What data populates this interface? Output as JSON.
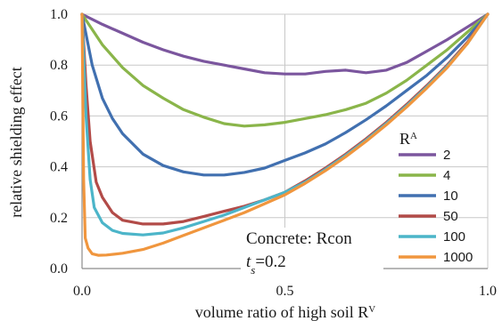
{
  "chart_data": {
    "type": "line",
    "title": "",
    "xlabel": "volume ratio of high soil R",
    "xlabel_sup": "V",
    "ylabel": "relative shielding effect",
    "xlim": [
      0,
      1
    ],
    "ylim": [
      0,
      1
    ],
    "x_ticks": [
      "0.0",
      "0.5",
      "1.0"
    ],
    "y_ticks": [
      "0.0",
      "0.2",
      "0.4",
      "0.6",
      "0.8",
      "1.0"
    ],
    "grid": true,
    "legend_title": "R",
    "legend_title_sup": "A",
    "legend_position": "right",
    "annotation_line1": "Concrete: Rcon",
    "annotation_line2_t": "t",
    "annotation_line2_sub": "s",
    "annotation_line2_rest": "=0.2",
    "series": [
      {
        "name": "2",
        "color": "#7b569e",
        "x": [
          0,
          0.05,
          0.1,
          0.15,
          0.2,
          0.25,
          0.3,
          0.35,
          0.4,
          0.45,
          0.5,
          0.55,
          0.6,
          0.65,
          0.7,
          0.75,
          0.8,
          0.85,
          0.9,
          0.95,
          1.0
        ],
        "y": [
          1.0,
          0.96,
          0.925,
          0.89,
          0.86,
          0.835,
          0.815,
          0.8,
          0.785,
          0.77,
          0.765,
          0.765,
          0.775,
          0.78,
          0.77,
          0.78,
          0.81,
          0.855,
          0.9,
          0.95,
          1.0
        ]
      },
      {
        "name": "4",
        "color": "#8ab54a",
        "x": [
          0,
          0.05,
          0.1,
          0.15,
          0.2,
          0.25,
          0.3,
          0.35,
          0.4,
          0.45,
          0.5,
          0.55,
          0.6,
          0.65,
          0.7,
          0.75,
          0.8,
          0.85,
          0.9,
          0.95,
          1.0
        ],
        "y": [
          1.0,
          0.88,
          0.79,
          0.72,
          0.67,
          0.625,
          0.595,
          0.57,
          0.56,
          0.565,
          0.575,
          0.59,
          0.605,
          0.625,
          0.65,
          0.69,
          0.74,
          0.8,
          0.86,
          0.93,
          1.0
        ]
      },
      {
        "name": "10",
        "color": "#4170b0",
        "x": [
          0,
          0.025,
          0.05,
          0.075,
          0.1,
          0.15,
          0.2,
          0.25,
          0.3,
          0.35,
          0.4,
          0.45,
          0.5,
          0.55,
          0.6,
          0.65,
          0.7,
          0.75,
          0.8,
          0.85,
          0.9,
          0.95,
          1.0
        ],
        "y": [
          1.0,
          0.8,
          0.67,
          0.59,
          0.53,
          0.45,
          0.405,
          0.38,
          0.368,
          0.368,
          0.378,
          0.395,
          0.425,
          0.455,
          0.49,
          0.535,
          0.585,
          0.64,
          0.7,
          0.76,
          0.83,
          0.91,
          1.0
        ]
      },
      {
        "name": "50",
        "color": "#b24b48",
        "x": [
          0,
          0.01,
          0.02,
          0.035,
          0.05,
          0.075,
          0.1,
          0.15,
          0.2,
          0.25,
          0.3,
          0.35,
          0.4,
          0.45,
          0.5,
          0.55,
          0.6,
          0.65,
          0.7,
          0.75,
          0.8,
          0.85,
          0.9,
          0.95,
          1.0
        ],
        "y": [
          1.0,
          0.72,
          0.5,
          0.34,
          0.28,
          0.22,
          0.19,
          0.175,
          0.175,
          0.185,
          0.205,
          0.225,
          0.245,
          0.27,
          0.3,
          0.345,
          0.395,
          0.45,
          0.51,
          0.575,
          0.645,
          0.72,
          0.8,
          0.89,
          1.0
        ]
      },
      {
        "name": "100",
        "color": "#4cb5c9",
        "x": [
          0,
          0.01,
          0.02,
          0.03,
          0.05,
          0.075,
          0.1,
          0.15,
          0.2,
          0.25,
          0.3,
          0.35,
          0.4,
          0.45,
          0.5,
          0.55,
          0.6,
          0.65,
          0.7,
          0.75,
          0.8,
          0.85,
          0.9,
          0.95,
          1.0
        ],
        "y": [
          1.0,
          0.6,
          0.35,
          0.24,
          0.18,
          0.15,
          0.138,
          0.132,
          0.14,
          0.16,
          0.185,
          0.21,
          0.24,
          0.27,
          0.3,
          0.34,
          0.39,
          0.445,
          0.505,
          0.57,
          0.64,
          0.715,
          0.795,
          0.885,
          1.0
        ]
      },
      {
        "name": "1000",
        "color": "#f0963e",
        "x": [
          0,
          0.004,
          0.008,
          0.015,
          0.025,
          0.04,
          0.06,
          0.1,
          0.15,
          0.2,
          0.25,
          0.3,
          0.35,
          0.4,
          0.45,
          0.5,
          0.55,
          0.6,
          0.65,
          0.7,
          0.75,
          0.8,
          0.85,
          0.9,
          0.95,
          1.0
        ],
        "y": [
          1.0,
          0.35,
          0.12,
          0.08,
          0.058,
          0.052,
          0.053,
          0.06,
          0.075,
          0.1,
          0.13,
          0.16,
          0.19,
          0.22,
          0.255,
          0.29,
          0.335,
          0.385,
          0.44,
          0.5,
          0.565,
          0.635,
          0.71,
          0.79,
          0.885,
          1.0
        ]
      }
    ]
  }
}
